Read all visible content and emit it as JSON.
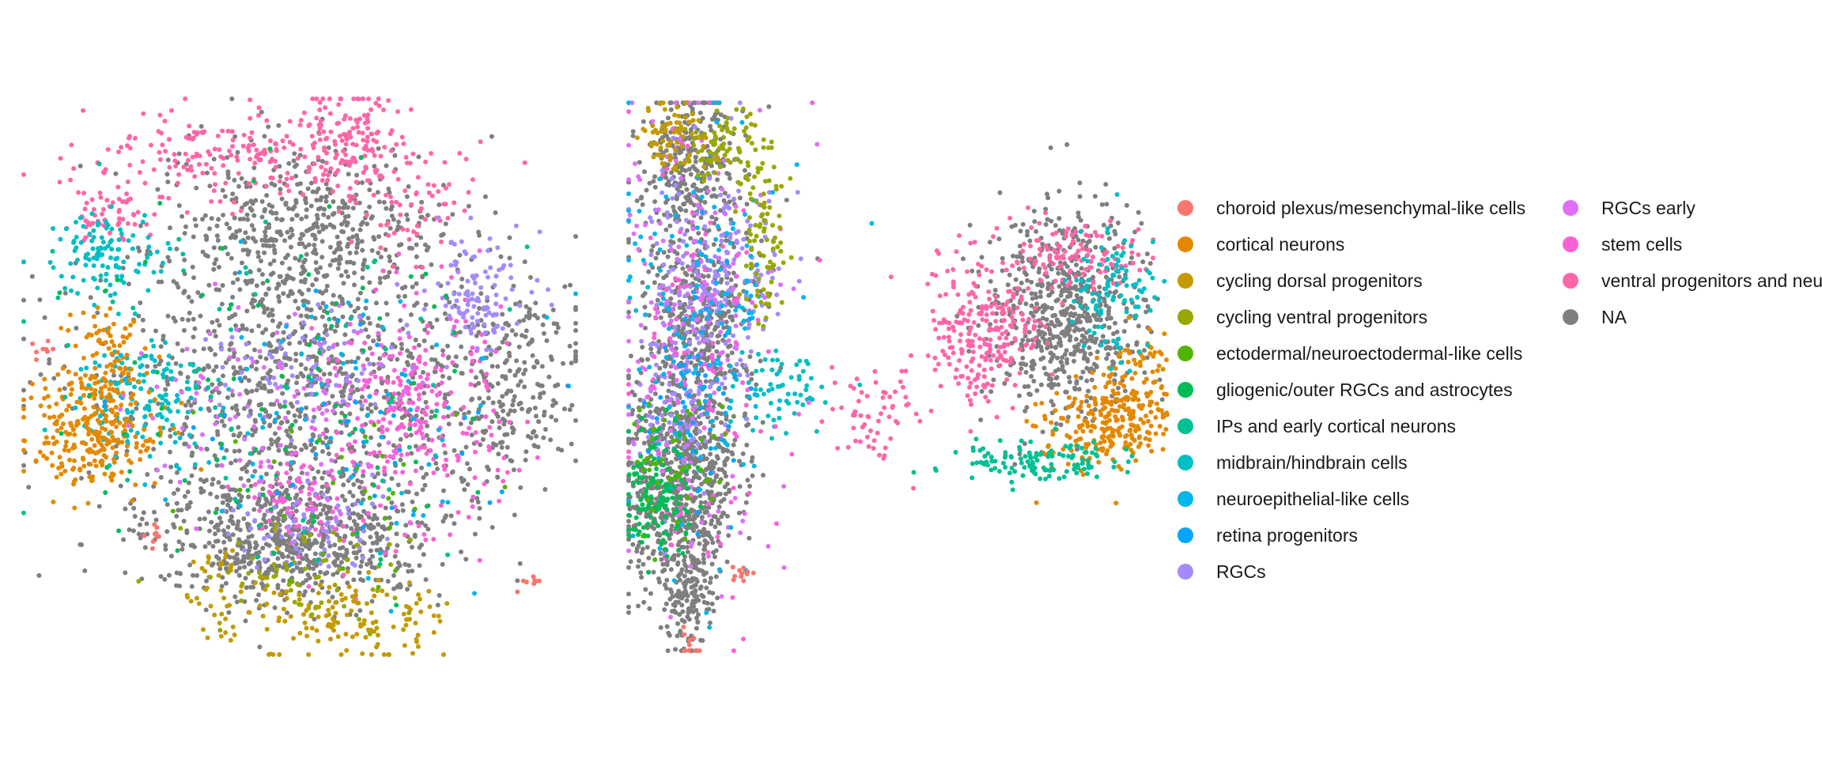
{
  "chart_data": {
    "type": "scatter",
    "title": "",
    "xlabel": "",
    "ylabel": "",
    "axes_visible": false,
    "grid": false,
    "legend": "right",
    "panels": [
      "left",
      "right"
    ],
    "categories": [
      {
        "name": "choroid plexus/mesenchymal-like cells",
        "color": "#F8766D"
      },
      {
        "name": "cortical neurons",
        "color": "#E38900"
      },
      {
        "name": "cycling dorsal progenitors",
        "color": "#C49A00"
      },
      {
        "name": "cycling ventral progenitors",
        "color": "#99A800"
      },
      {
        "name": "ectodermal/neuroectodermal-like cells",
        "color": "#53B400"
      },
      {
        "name": "gliogenic/outer RGCs and astrocytes",
        "color": "#00BC56"
      },
      {
        "name": "IPs and early cortical neurons",
        "color": "#00C094"
      },
      {
        "name": "midbrain/hindbrain cells",
        "color": "#00BFC4"
      },
      {
        "name": "neuroepithelial-like cells",
        "color": "#00B6EB"
      },
      {
        "name": "retina progenitors",
        "color": "#06A4FF"
      },
      {
        "name": "RGCs",
        "color": "#A58AFF"
      },
      {
        "name": "RGCs early",
        "color": "#DF70F8"
      },
      {
        "name": "stem cells",
        "color": "#FB61D7"
      },
      {
        "name": "ventral progenitors and neurons",
        "color": "#FF66A8"
      },
      {
        "name": "NA",
        "color": "#7F7F7F"
      }
    ],
    "clusters": [
      {
        "panel": "left",
        "category": "NA",
        "cx": 0.48,
        "cy": 0.78,
        "sx": 0.13,
        "sy": 0.06,
        "n": 700
      },
      {
        "panel": "left",
        "category": "NA",
        "cx": 0.5,
        "cy": 0.5,
        "sx": 0.19,
        "sy": 0.12,
        "n": 900
      },
      {
        "panel": "left",
        "category": "NA",
        "cx": 0.5,
        "cy": 0.24,
        "sx": 0.12,
        "sy": 0.08,
        "n": 500
      },
      {
        "panel": "left",
        "category": "NA",
        "cx": 0.86,
        "cy": 0.5,
        "sx": 0.07,
        "sy": 0.1,
        "n": 220
      },
      {
        "panel": "left",
        "category": "ventral progenitors and neurons",
        "cx": 0.4,
        "cy": 0.1,
        "sx": 0.14,
        "sy": 0.04,
        "n": 200
      },
      {
        "panel": "left",
        "category": "ventral progenitors and neurons",
        "cx": 0.58,
        "cy": 0.06,
        "sx": 0.05,
        "sy": 0.05,
        "n": 120
      },
      {
        "panel": "left",
        "category": "ventral progenitors and neurons",
        "cx": 0.15,
        "cy": 0.2,
        "sx": 0.04,
        "sy": 0.03,
        "n": 60
      },
      {
        "panel": "left",
        "category": "ventral progenitors and neurons",
        "cx": 0.7,
        "cy": 0.18,
        "sx": 0.05,
        "sy": 0.05,
        "n": 60
      },
      {
        "panel": "left",
        "category": "midbrain/hindbrain cells",
        "cx": 0.15,
        "cy": 0.28,
        "sx": 0.05,
        "sy": 0.04,
        "n": 110
      },
      {
        "panel": "left",
        "category": "midbrain/hindbrain cells",
        "cx": 0.22,
        "cy": 0.53,
        "sx": 0.06,
        "sy": 0.05,
        "n": 140
      },
      {
        "panel": "left",
        "category": "cortical neurons",
        "cx": 0.12,
        "cy": 0.6,
        "sx": 0.06,
        "sy": 0.05,
        "n": 260
      },
      {
        "panel": "left",
        "category": "cortical neurons",
        "cx": 0.14,
        "cy": 0.46,
        "sx": 0.04,
        "sy": 0.05,
        "n": 90
      },
      {
        "panel": "left",
        "category": "stem cells",
        "cx": 0.7,
        "cy": 0.55,
        "sx": 0.08,
        "sy": 0.1,
        "n": 280
      },
      {
        "panel": "left",
        "category": "stem cells",
        "cx": 0.5,
        "cy": 0.72,
        "sx": 0.05,
        "sy": 0.04,
        "n": 80
      },
      {
        "panel": "left",
        "category": "RGCs",
        "cx": 0.81,
        "cy": 0.35,
        "sx": 0.05,
        "sy": 0.05,
        "n": 110
      },
      {
        "panel": "left",
        "category": "RGCs",
        "cx": 0.5,
        "cy": 0.76,
        "sx": 0.08,
        "sy": 0.04,
        "n": 70
      },
      {
        "panel": "left",
        "category": "RGCs",
        "cx": 0.5,
        "cy": 0.48,
        "sx": 0.08,
        "sy": 0.05,
        "n": 70
      },
      {
        "panel": "left",
        "category": "RGCs early",
        "cx": 0.45,
        "cy": 0.56,
        "sx": 0.12,
        "sy": 0.09,
        "n": 110
      },
      {
        "panel": "left",
        "category": "cycling dorsal progenitors",
        "cx": 0.58,
        "cy": 0.93,
        "sx": 0.09,
        "sy": 0.04,
        "n": 140
      },
      {
        "panel": "left",
        "category": "cycling dorsal progenitors",
        "cx": 0.36,
        "cy": 0.87,
        "sx": 0.04,
        "sy": 0.04,
        "n": 40
      },
      {
        "panel": "left",
        "category": "cycling ventral progenitors",
        "cx": 0.5,
        "cy": 0.85,
        "sx": 0.1,
        "sy": 0.05,
        "n": 60
      },
      {
        "panel": "left",
        "category": "gliogenic/outer RGCs and astrocytes",
        "cx": 0.5,
        "cy": 0.5,
        "sx": 0.2,
        "sy": 0.17,
        "n": 90
      },
      {
        "panel": "left",
        "category": "neuroepithelial-like cells",
        "cx": 0.55,
        "cy": 0.55,
        "sx": 0.18,
        "sy": 0.15,
        "n": 80
      },
      {
        "panel": "left",
        "category": "retina progenitors",
        "cx": 0.52,
        "cy": 0.55,
        "sx": 0.16,
        "sy": 0.14,
        "n": 40
      },
      {
        "panel": "left",
        "category": "IPs and early cortical neurons",
        "cx": 0.4,
        "cy": 0.45,
        "sx": 0.18,
        "sy": 0.18,
        "n": 60
      },
      {
        "panel": "left",
        "category": "ectodermal/neuroectodermal-like cells",
        "cx": 0.55,
        "cy": 0.7,
        "sx": 0.15,
        "sy": 0.1,
        "n": 30
      },
      {
        "panel": "left",
        "category": "choroid plexus/mesenchymal-like cells",
        "cx": 0.24,
        "cy": 0.78,
        "sx": 0.01,
        "sy": 0.01,
        "n": 10
      },
      {
        "panel": "left",
        "category": "choroid plexus/mesenchymal-like cells",
        "cx": 0.91,
        "cy": 0.86,
        "sx": 0.01,
        "sy": 0.01,
        "n": 8
      },
      {
        "panel": "left",
        "category": "choroid plexus/mesenchymal-like cells",
        "cx": 0.03,
        "cy": 0.45,
        "sx": 0.01,
        "sy": 0.01,
        "n": 8
      },
      {
        "panel": "right",
        "category": "NA",
        "cx": 0.09,
        "cy": 0.7,
        "sx": 0.05,
        "sy": 0.1,
        "n": 650
      },
      {
        "panel": "right",
        "category": "NA",
        "cx": 0.12,
        "cy": 0.4,
        "sx": 0.05,
        "sy": 0.13,
        "n": 550
      },
      {
        "panel": "right",
        "category": "NA",
        "cx": 0.11,
        "cy": 0.1,
        "sx": 0.04,
        "sy": 0.06,
        "n": 250
      },
      {
        "panel": "right",
        "category": "NA",
        "cx": 0.11,
        "cy": 0.9,
        "sx": 0.02,
        "sy": 0.05,
        "n": 120
      },
      {
        "panel": "right",
        "category": "NA",
        "cx": 0.77,
        "cy": 0.38,
        "sx": 0.07,
        "sy": 0.09,
        "n": 650
      },
      {
        "panel": "right",
        "category": "ventral progenitors and neurons",
        "cx": 0.63,
        "cy": 0.42,
        "sx": 0.05,
        "sy": 0.07,
        "n": 240
      },
      {
        "panel": "right",
        "category": "ventral progenitors and neurons",
        "cx": 0.78,
        "cy": 0.28,
        "sx": 0.07,
        "sy": 0.03,
        "n": 120
      },
      {
        "panel": "right",
        "category": "ventral progenitors and neurons",
        "cx": 0.44,
        "cy": 0.56,
        "sx": 0.04,
        "sy": 0.05,
        "n": 60
      },
      {
        "panel": "right",
        "category": "cortical neurons",
        "cx": 0.84,
        "cy": 0.58,
        "sx": 0.06,
        "sy": 0.04,
        "n": 230
      },
      {
        "panel": "right",
        "category": "cortical neurons",
        "cx": 0.9,
        "cy": 0.5,
        "sx": 0.03,
        "sy": 0.05,
        "n": 80
      },
      {
        "panel": "right",
        "category": "midbrain/hindbrain cells",
        "cx": 0.86,
        "cy": 0.35,
        "sx": 0.04,
        "sy": 0.06,
        "n": 100
      },
      {
        "panel": "right",
        "category": "midbrain/hindbrain cells",
        "cx": 0.28,
        "cy": 0.52,
        "sx": 0.05,
        "sy": 0.04,
        "n": 60
      },
      {
        "panel": "right",
        "category": "IPs and early cortical neurons",
        "cx": 0.71,
        "cy": 0.65,
        "sx": 0.07,
        "sy": 0.02,
        "n": 120
      },
      {
        "panel": "right",
        "category": "RGCs",
        "cx": 0.16,
        "cy": 0.3,
        "sx": 0.06,
        "sy": 0.1,
        "n": 220
      },
      {
        "panel": "right",
        "category": "RGCs",
        "cx": 0.08,
        "cy": 0.55,
        "sx": 0.04,
        "sy": 0.08,
        "n": 100
      },
      {
        "panel": "right",
        "category": "RGCs early",
        "cx": 0.11,
        "cy": 0.42,
        "sx": 0.07,
        "sy": 0.2,
        "n": 180
      },
      {
        "panel": "right",
        "category": "stem cells",
        "cx": 0.12,
        "cy": 0.45,
        "sx": 0.08,
        "sy": 0.22,
        "n": 120
      },
      {
        "panel": "right",
        "category": "neuroepithelial-like cells",
        "cx": 0.13,
        "cy": 0.4,
        "sx": 0.07,
        "sy": 0.2,
        "n": 170
      },
      {
        "panel": "right",
        "category": "gliogenic/outer RGCs and astrocytes",
        "cx": 0.05,
        "cy": 0.7,
        "sx": 0.03,
        "sy": 0.06,
        "n": 140
      },
      {
        "panel": "right",
        "category": "cycling ventral progenitors",
        "cx": 0.17,
        "cy": 0.08,
        "sx": 0.04,
        "sy": 0.03,
        "n": 90
      },
      {
        "panel": "right",
        "category": "cycling ventral progenitors",
        "cx": 0.24,
        "cy": 0.25,
        "sx": 0.02,
        "sy": 0.08,
        "n": 80
      },
      {
        "panel": "right",
        "category": "cycling dorsal progenitors",
        "cx": 0.08,
        "cy": 0.06,
        "sx": 0.03,
        "sy": 0.03,
        "n": 70
      },
      {
        "panel": "right",
        "category": "ectodermal/neuroectodermal-like cells",
        "cx": 0.08,
        "cy": 0.66,
        "sx": 0.04,
        "sy": 0.07,
        "n": 50
      },
      {
        "panel": "right",
        "category": "retina progenitors",
        "cx": 0.12,
        "cy": 0.55,
        "sx": 0.05,
        "sy": 0.12,
        "n": 40
      },
      {
        "panel": "right",
        "category": "choroid plexus/mesenchymal-like cells",
        "cx": 0.2,
        "cy": 0.85,
        "sx": 0.01,
        "sy": 0.01,
        "n": 12
      },
      {
        "panel": "right",
        "category": "choroid plexus/mesenchymal-like cells",
        "cx": 0.11,
        "cy": 0.97,
        "sx": 0.01,
        "sy": 0.02,
        "n": 10
      }
    ]
  },
  "legend": {
    "columns": [
      [
        {
          "label": "choroid plexus/mesenchymal-like cells",
          "color": "#F8766D"
        },
        {
          "label": "cortical neurons",
          "color": "#E38900"
        },
        {
          "label": "cycling dorsal progenitors",
          "color": "#C49A00"
        },
        {
          "label": "cycling ventral progenitors",
          "color": "#99A800"
        },
        {
          "label": "ectodermal/neuroectodermal-like cells",
          "color": "#53B400"
        },
        {
          "label": "gliogenic/outer RGCs and astrocytes",
          "color": "#00BC56"
        },
        {
          "label": "IPs and early cortical neurons",
          "color": "#00C094"
        },
        {
          "label": "midbrain/hindbrain cells",
          "color": "#00BFC4"
        },
        {
          "label": "neuroepithelial-like cells",
          "color": "#00B6EB"
        },
        {
          "label": "retina progenitors",
          "color": "#06A4FF"
        },
        {
          "label": "RGCs",
          "color": "#A58AFF"
        }
      ],
      [
        {
          "label": "RGCs early",
          "color": "#DF70F8"
        },
        {
          "label": "stem cells",
          "color": "#FB61D7"
        },
        {
          "label": "ventral progenitors and neurons",
          "color": "#FF66A8"
        },
        {
          "label": "NA",
          "color": "#7F7F7F"
        }
      ]
    ]
  }
}
